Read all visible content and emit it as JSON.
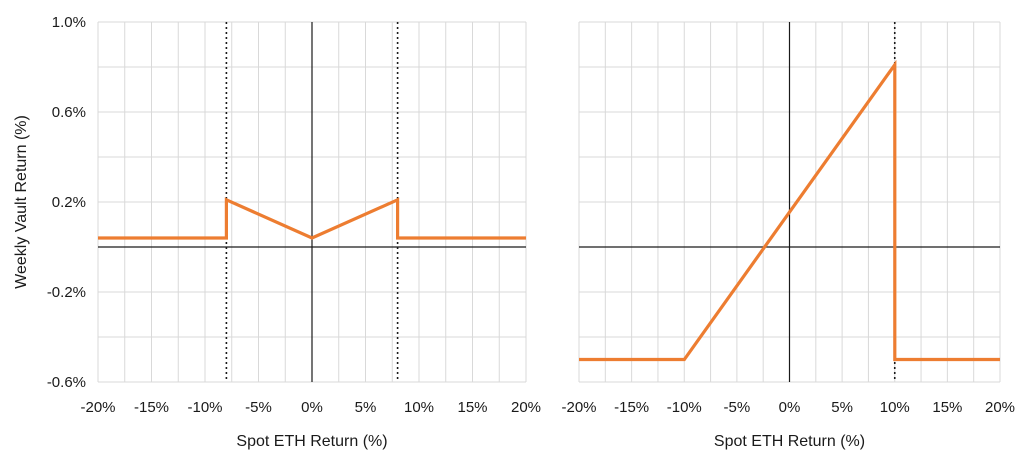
{
  "colors": {
    "series": "#ed7d31",
    "grid": "#d9d9d9",
    "axis": "#1a1a1a"
  },
  "chart_data": [
    {
      "type": "line",
      "title": "",
      "xlabel": "Spot ETH Return (%)",
      "ylabel": "Weekly Vault Return (%)",
      "xlim": [
        -20,
        20
      ],
      "ylim": [
        -0.6,
        1.0
      ],
      "x_ticks": [
        -20,
        -15,
        -10,
        -5,
        0,
        5,
        10,
        15,
        20
      ],
      "x_tick_labels": [
        "-20%",
        "-15%",
        "-10%",
        "-5%",
        "0%",
        "5%",
        "10%",
        "15%",
        "20%"
      ],
      "y_ticks": [
        -0.6,
        -0.2,
        0.2,
        0.6,
        1.0
      ],
      "y_tick_labels": [
        "-0.6%",
        "-0.2%",
        "0.2%",
        "0.6%",
        "1.0%"
      ],
      "grid": true,
      "vertical_markers": [
        -8,
        8
      ],
      "series": [
        {
          "x": [
            -20,
            -8,
            -8,
            0,
            8,
            8,
            20
          ],
          "y": [
            0.04,
            0.04,
            0.21,
            0.04,
            0.21,
            0.04,
            0.04
          ]
        }
      ]
    },
    {
      "type": "line",
      "title": "",
      "xlabel": "Spot ETH Return (%)",
      "ylabel": "",
      "xlim": [
        -20,
        20
      ],
      "ylim": [
        -0.6,
        1.0
      ],
      "x_ticks": [
        -20,
        -15,
        -10,
        -5,
        0,
        5,
        10,
        15,
        20
      ],
      "x_tick_labels": [
        "-20%",
        "-15%",
        "-10%",
        "-5%",
        "0%",
        "5%",
        "10%",
        "15%",
        "20%"
      ],
      "y_ticks": [
        -0.6,
        -0.2,
        0.2,
        0.6,
        1.0
      ],
      "y_tick_labels": [],
      "grid": true,
      "vertical_markers": [
        10
      ],
      "series": [
        {
          "x": [
            -20,
            -10,
            10,
            10,
            20
          ],
          "y": [
            -0.5,
            -0.5,
            0.81,
            -0.5,
            -0.5
          ]
        }
      ]
    }
  ]
}
